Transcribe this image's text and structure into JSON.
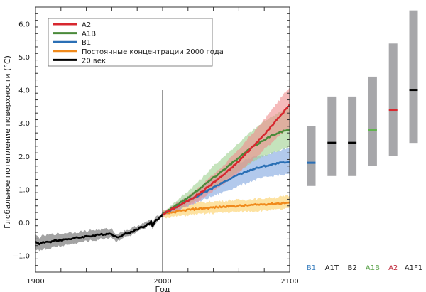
{
  "chart_data": {
    "type": "line",
    "title": "",
    "xlabel": "Год",
    "ylabel": "Глобальное потепление поверхности (°C)",
    "xlim": [
      1900,
      2100
    ],
    "ylim": [
      -1.5,
      6.5
    ],
    "x_ticks": [
      1900,
      2000,
      2100
    ],
    "x_tick_labels": [
      "1900",
      "2000",
      "2100"
    ],
    "x_minor_tick_step": 20,
    "y_ticks": [
      -1.0,
      0.0,
      1.0,
      2.0,
      3.0,
      4.0,
      5.0,
      6.0
    ],
    "y_tick_labels": [
      "−1.0",
      "0.0",
      "1.0",
      "2.0",
      "3.0",
      "4.0",
      "5.0",
      "6.0"
    ],
    "y_minor_tick_step": 0.2,
    "grid": false,
    "legend_position": "top-left",
    "annotations": [
      {
        "type": "vertical-line",
        "x": 2000,
        "y_top": 4.0
      }
    ],
    "series": [
      {
        "name": "A2",
        "color": "#d7282f",
        "band_color": "#ef8c8c",
        "x": [
          2000,
          2010,
          2020,
          2030,
          2040,
          2050,
          2060,
          2070,
          2080,
          2090,
          2100
        ],
        "values": [
          0.25,
          0.45,
          0.65,
          0.9,
          1.2,
          1.5,
          1.85,
          2.25,
          2.65,
          3.1,
          3.55
        ],
        "lower": [
          0.2,
          0.35,
          0.5,
          0.7,
          0.95,
          1.2,
          1.5,
          1.85,
          2.2,
          2.55,
          2.9
        ],
        "upper": [
          0.3,
          0.55,
          0.8,
          1.1,
          1.45,
          1.8,
          2.2,
          2.65,
          3.1,
          3.6,
          4.1
        ]
      },
      {
        "name": "A1B",
        "color": "#4a8a3a",
        "band_color": "#9fd08f",
        "x": [
          2000,
          2010,
          2020,
          2030,
          2040,
          2050,
          2060,
          2070,
          2080,
          2090,
          2100
        ],
        "values": [
          0.25,
          0.5,
          0.75,
          1.05,
          1.35,
          1.65,
          1.95,
          2.25,
          2.5,
          2.7,
          2.8
        ],
        "lower": [
          0.2,
          0.38,
          0.55,
          0.8,
          1.05,
          1.3,
          1.55,
          1.8,
          2.0,
          2.15,
          2.25
        ],
        "upper": [
          0.3,
          0.62,
          0.95,
          1.3,
          1.7,
          2.05,
          2.4,
          2.75,
          3.05,
          3.3,
          3.45
        ]
      },
      {
        "name": "B1",
        "color": "#2a6fb5",
        "band_color": "#7fa5df",
        "x": [
          2000,
          2010,
          2020,
          2030,
          2040,
          2050,
          2060,
          2070,
          2080,
          2090,
          2100
        ],
        "values": [
          0.25,
          0.45,
          0.65,
          0.85,
          1.05,
          1.25,
          1.45,
          1.6,
          1.7,
          1.78,
          1.82
        ],
        "lower": [
          0.2,
          0.35,
          0.5,
          0.65,
          0.8,
          0.95,
          1.1,
          1.25,
          1.35,
          1.42,
          1.45
        ],
        "upper": [
          0.3,
          0.55,
          0.8,
          1.05,
          1.3,
          1.55,
          1.8,
          1.95,
          2.05,
          2.15,
          2.25
        ]
      },
      {
        "name": "Постоянные концентрации 2000 года",
        "color": "#f08a1c",
        "band_color": "#fbcf63",
        "x": [
          2000,
          2010,
          2020,
          2030,
          2040,
          2050,
          2060,
          2070,
          2080,
          2090,
          2100
        ],
        "values": [
          0.25,
          0.32,
          0.38,
          0.42,
          0.45,
          0.48,
          0.5,
          0.52,
          0.55,
          0.57,
          0.6
        ],
        "lower": [
          0.15,
          0.18,
          0.22,
          0.25,
          0.28,
          0.3,
          0.32,
          0.34,
          0.36,
          0.38,
          0.42
        ],
        "upper": [
          0.35,
          0.45,
          0.55,
          0.6,
          0.63,
          0.66,
          0.68,
          0.7,
          0.73,
          0.76,
          0.8
        ]
      },
      {
        "name": "20 век",
        "color": "#000000",
        "band_color": "#a3a3a3",
        "x": [
          1900,
          1903,
          1906,
          1910,
          1914,
          1918,
          1922,
          1926,
          1930,
          1935,
          1940,
          1945,
          1950,
          1955,
          1960,
          1962,
          1964,
          1967,
          1970,
          1975,
          1980,
          1983,
          1986,
          1989,
          1991,
          1992,
          1994,
          1997,
          2000
        ],
        "values": [
          -0.58,
          -0.65,
          -0.6,
          -0.6,
          -0.55,
          -0.55,
          -0.52,
          -0.5,
          -0.48,
          -0.45,
          -0.42,
          -0.4,
          -0.38,
          -0.35,
          -0.33,
          -0.42,
          -0.45,
          -0.4,
          -0.35,
          -0.3,
          -0.2,
          -0.15,
          -0.12,
          -0.05,
          0.02,
          -0.12,
          0.05,
          0.12,
          0.25
        ],
        "lower": [
          -0.78,
          -0.85,
          -0.8,
          -0.8,
          -0.75,
          -0.72,
          -0.7,
          -0.67,
          -0.64,
          -0.6,
          -0.57,
          -0.55,
          -0.52,
          -0.48,
          -0.45,
          -0.54,
          -0.56,
          -0.5,
          -0.45,
          -0.4,
          -0.3,
          -0.25,
          -0.2,
          -0.12,
          -0.05,
          -0.22,
          -0.03,
          0.05,
          0.18
        ],
        "upper": [
          -0.38,
          -0.45,
          -0.4,
          -0.38,
          -0.35,
          -0.35,
          -0.33,
          -0.3,
          -0.3,
          -0.28,
          -0.26,
          -0.23,
          -0.22,
          -0.2,
          -0.2,
          -0.3,
          -0.33,
          -0.3,
          -0.25,
          -0.2,
          -0.1,
          -0.05,
          -0.02,
          0.05,
          0.1,
          -0.02,
          0.13,
          0.2,
          0.32
        ]
      }
    ],
    "legend": [
      {
        "label": "A2",
        "color": "#d7282f"
      },
      {
        "label": "A1B",
        "color": "#4a8a3a"
      },
      {
        "label": "B1",
        "color": "#2a6fb5"
      },
      {
        "label": "Постоянные концентрации 2000 года",
        "color": "#f08a1c"
      },
      {
        "label": "20 век",
        "color": "#000000"
      }
    ],
    "range_bars": {
      "bar_color": "#a7a7aa",
      "items": [
        {
          "label": "B1",
          "label_color": "#3a7fbf",
          "low": 1.1,
          "best": 1.8,
          "high": 2.9,
          "mark_color": "#2a6fb5"
        },
        {
          "label": "A1T",
          "label_color": "#222222",
          "low": 1.4,
          "best": 2.4,
          "high": 3.8,
          "mark_color": "#000000"
        },
        {
          "label": "B2",
          "label_color": "#222222",
          "low": 1.4,
          "best": 2.4,
          "high": 3.8,
          "mark_color": "#000000"
        },
        {
          "label": "A1B",
          "label_color": "#5aa24a",
          "low": 1.7,
          "best": 2.8,
          "high": 4.4,
          "mark_color": "#62b34f"
        },
        {
          "label": "A2",
          "label_color": "#c0283a",
          "low": 2.0,
          "best": 3.4,
          "high": 5.4,
          "mark_color": "#d7282f"
        },
        {
          "label": "A1F1",
          "label_color": "#222222",
          "low": 2.4,
          "best": 4.0,
          "high": 6.4,
          "mark_color": "#000000"
        }
      ]
    }
  }
}
